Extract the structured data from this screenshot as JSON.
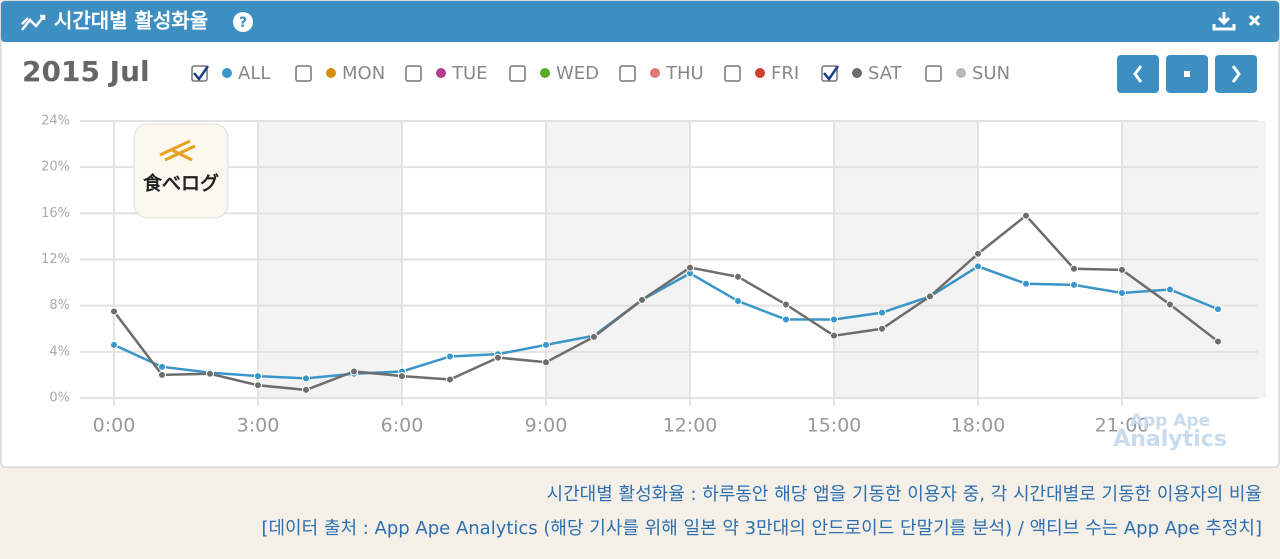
{
  "header": {
    "title": "시간대별 활성화율"
  },
  "chart_data": {
    "type": "line",
    "period": "2015 Jul",
    "categories": [
      "0:00",
      null,
      null,
      "3:00",
      null,
      null,
      "6:00",
      null,
      null,
      "9:00",
      null,
      null,
      "12:00",
      null,
      null,
      "15:00",
      null,
      null,
      "18:00",
      null,
      null,
      "21:00",
      null,
      null
    ],
    "ylim": [
      0,
      24
    ],
    "yticks": [
      {
        "value": 0,
        "label": "0%"
      },
      {
        "value": 4,
        "label": "4%"
      },
      {
        "value": 8,
        "label": "8%"
      },
      {
        "value": 12,
        "label": "12%"
      },
      {
        "value": 16,
        "label": "16%"
      },
      {
        "value": 20,
        "label": "20%"
      },
      {
        "value": 24,
        "label": "24%"
      }
    ],
    "grid": true,
    "series": [
      {
        "name": "ALL",
        "color": "#3a95c8",
        "checked": true,
        "values": [
          4.6,
          2.7,
          2.2,
          1.9,
          1.7,
          2.1,
          2.3,
          3.6,
          3.8,
          4.6,
          5.4,
          8.5,
          10.8,
          8.4,
          6.8,
          6.8,
          7.4,
          8.8,
          11.4,
          9.9,
          9.8,
          9.1,
          9.4,
          7.7
        ]
      },
      {
        "name": "MON",
        "color": "#d4900e",
        "checked": false
      },
      {
        "name": "TUE",
        "color": "#b53c8a",
        "checked": false
      },
      {
        "name": "WED",
        "color": "#5aaa2a",
        "checked": false
      },
      {
        "name": "THU",
        "color": "#e07878",
        "checked": false
      },
      {
        "name": "FRI",
        "color": "#d04030",
        "checked": false
      },
      {
        "name": "SAT",
        "color": "#6d6d6d",
        "checked": true,
        "values": [
          7.5,
          2.0,
          2.1,
          1.1,
          0.7,
          2.3,
          1.9,
          1.6,
          3.5,
          3.1,
          5.3,
          8.5,
          11.3,
          10.5,
          8.1,
          5.4,
          6.0,
          8.8,
          12.5,
          15.8,
          11.2,
          11.1,
          8.1,
          4.9
        ]
      },
      {
        "name": "SUN",
        "color": "#b8b8b8",
        "checked": false
      }
    ],
    "app_icon_label": "食べログ",
    "watermark": [
      "App Ape",
      "Analytics"
    ]
  },
  "caption": [
    "시간대별 활성화율 : 하루동안 해당 앱을 기동한 이용자 중, 각 시간대별로 기동한 이용자의 비율",
    "[데이터 출처 : App Ape Analytics (해당 기사를 위해 일본 약 3만대의 안드로이드 단말기를 분석) / 액티브 수는 App Ape 추정치]"
  ]
}
